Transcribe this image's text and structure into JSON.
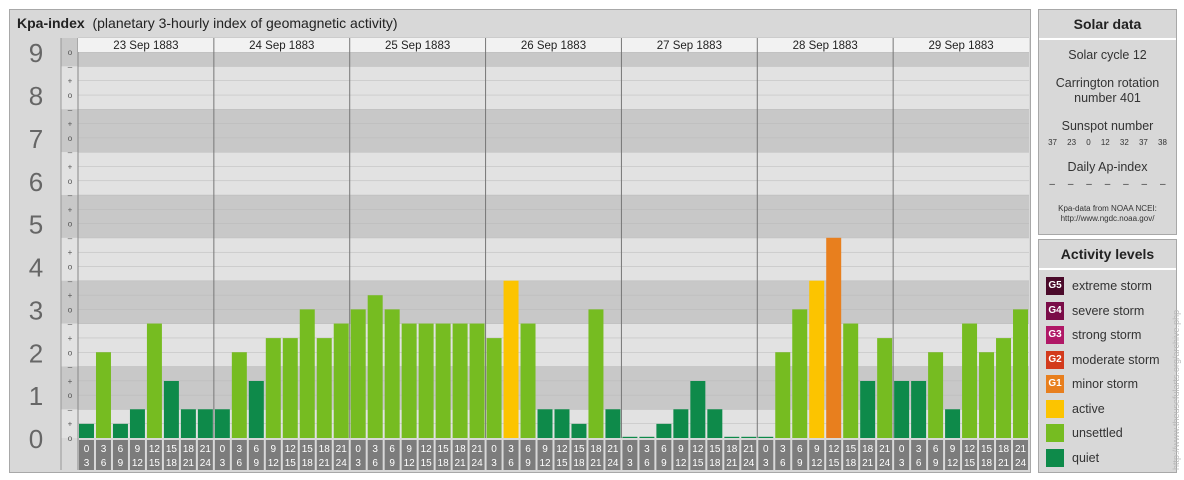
{
  "header": {
    "title_bold": "Kpa-index",
    "title_rest": "(planetary 3-hourly index of geomagnetic activity)"
  },
  "chart_data": {
    "type": "bar",
    "y_major_labels": [
      "0",
      "1",
      "2",
      "3",
      "4",
      "5",
      "6",
      "7",
      "8",
      "9"
    ],
    "y_minor_labels": [
      "o",
      "+",
      "–",
      "o"
    ],
    "ylim": [
      0,
      9.33
    ],
    "days": [
      "23 Sep 1883",
      "24 Sep 1883",
      "25 Sep 1883",
      "26 Sep 1883",
      "27 Sep 1883",
      "28 Sep 1883",
      "29 Sep 1883"
    ],
    "interval_labels": [
      [
        "0",
        "3"
      ],
      [
        "3",
        "6"
      ],
      [
        "6",
        "9"
      ],
      [
        "9",
        "12"
      ],
      [
        "12",
        "15"
      ],
      [
        "15",
        "18"
      ],
      [
        "18",
        "21"
      ],
      [
        "21",
        "24"
      ]
    ],
    "values": [
      [
        0.33,
        2.0,
        0.33,
        0.67,
        2.67,
        1.33,
        0.67,
        0.67
      ],
      [
        0.67,
        2.0,
        1.33,
        2.33,
        2.33,
        3.0,
        2.33,
        2.67
      ],
      [
        3.0,
        3.33,
        3.0,
        2.67,
        2.67,
        2.67,
        2.67,
        2.67
      ],
      [
        2.33,
        3.67,
        2.67,
        0.67,
        0.67,
        0.33,
        3.0,
        0.67
      ],
      [
        0.0,
        0.0,
        0.33,
        0.67,
        1.33,
        0.67,
        0.0,
        0.0
      ],
      [
        0.0,
        2.0,
        3.0,
        3.67,
        4.67,
        2.67,
        1.33,
        2.33
      ],
      [
        1.33,
        1.33,
        2.0,
        0.67,
        2.67,
        2.0,
        2.33,
        3.0
      ]
    ],
    "colors": {
      "quiet": "#0e8a4a",
      "unsettled": "#76bc21",
      "active": "#fcc400",
      "minor": "#e87f1e"
    }
  },
  "solar": {
    "heading": "Solar data",
    "cycle": "Solar cycle 12",
    "carrington_line1": "Carrington rotation",
    "carrington_line2": "number 401",
    "sunspot_label": "Sunspot number",
    "sunspot_values": [
      "37",
      "23",
      "0",
      "12",
      "32",
      "37",
      "38"
    ],
    "ap_label": "Daily Ap-index",
    "ap_values": [
      "–",
      "–",
      "–",
      "–",
      "–",
      "–",
      "–"
    ],
    "source_line1": "Kpa-data from NOAA NCEI:",
    "source_line2": "http://www.ngdc.noaa.gov/"
  },
  "activity": {
    "heading": "Activity levels",
    "items": [
      {
        "code": "G5",
        "label": "extreme storm",
        "color": "#4a0a2a"
      },
      {
        "code": "G4",
        "label": "severe storm",
        "color": "#7a0c48"
      },
      {
        "code": "G3",
        "label": "strong storm",
        "color": "#b01866"
      },
      {
        "code": "G2",
        "label": "moderate storm",
        "color": "#d33a1c"
      },
      {
        "code": "G1",
        "label": "minor storm",
        "color": "#e87f1e"
      },
      {
        "code": "",
        "label": "active",
        "color": "#fcc400"
      },
      {
        "code": "",
        "label": "unsettled",
        "color": "#76bc21"
      },
      {
        "code": "",
        "label": "quiet",
        "color": "#0e8a4a"
      }
    ]
  },
  "watermark": "http://www.theusefularts.org/archive.php"
}
